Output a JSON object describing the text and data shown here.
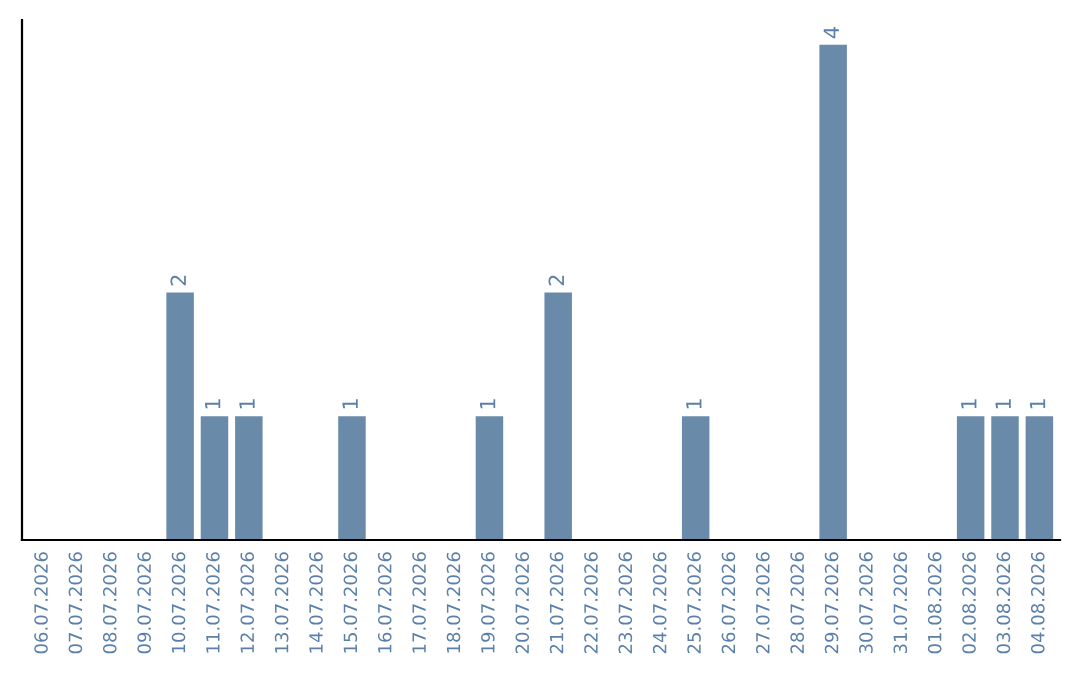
{
  "chart_data": {
    "type": "bar",
    "categories": [
      "06.07.2026",
      "07.07.2026",
      "08.07.2026",
      "09.07.2026",
      "10.07.2026",
      "11.07.2026",
      "12.07.2026",
      "13.07.2026",
      "14.07.2026",
      "15.07.2026",
      "16.07.2026",
      "17.07.2026",
      "18.07.2026",
      "19.07.2026",
      "20.07.2026",
      "21.07.2026",
      "22.07.2026",
      "23.07.2026",
      "24.07.2026",
      "25.07.2026",
      "26.07.2026",
      "27.07.2026",
      "28.07.2026",
      "29.07.2026",
      "30.07.2026",
      "31.07.2026",
      "01.08.2026",
      "02.08.2026",
      "03.08.2026",
      "04.08.2026"
    ],
    "values": [
      0,
      0,
      0,
      0,
      2,
      1,
      1,
      0,
      0,
      1,
      0,
      0,
      0,
      1,
      0,
      2,
      0,
      0,
      0,
      1,
      0,
      0,
      0,
      4,
      0,
      0,
      0,
      1,
      1,
      1
    ],
    "value_labels": [
      null,
      null,
      null,
      null,
      "2",
      "1",
      "1",
      null,
      null,
      "1",
      null,
      null,
      null,
      "1",
      null,
      "2",
      null,
      null,
      null,
      "1",
      null,
      null,
      null,
      "4",
      null,
      null,
      null,
      "1",
      "1",
      "1"
    ],
    "color": "#6a8aaa",
    "tick_labels": "x",
    "grid": false,
    "legend": false
  }
}
